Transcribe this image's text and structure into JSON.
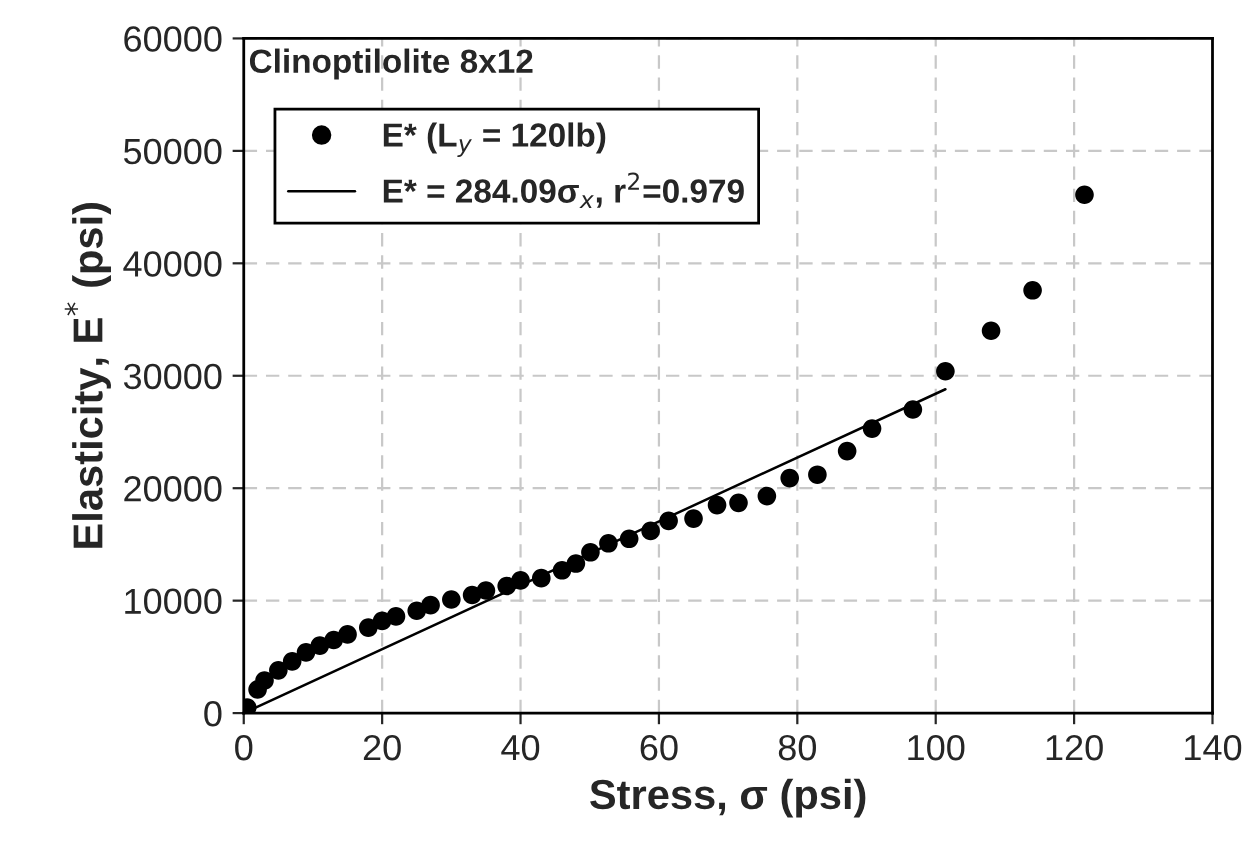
{
  "chart_data": {
    "type": "scatter",
    "title": "Clinoptilolite 8x12",
    "xlabel": "Stress, σ (psi)",
    "ylabel": "Elasticity, E$^{*}$ (psi)",
    "series": [
      {
        "name": "E* (L$_{y}$ = 120lb)",
        "color": "#000000",
        "marker": "circle",
        "x": [
          0.5,
          2,
          3,
          5,
          7,
          9,
          11,
          13,
          15,
          18,
          20,
          22,
          25,
          27,
          30,
          33,
          35,
          38,
          40,
          43,
          46,
          48,
          50.1,
          52.7,
          55.7,
          58.8,
          61.4,
          65.0,
          68.4,
          71.5,
          75.6,
          78.9,
          82.9,
          87.2,
          90.8,
          96.7,
          101.4,
          108,
          114,
          121.5
        ],
        "values": [
          500,
          2100,
          2900,
          3800,
          4600,
          5400,
          6000,
          6500,
          7000,
          7600,
          8200,
          8600,
          9100,
          9600,
          10100,
          10500,
          10900,
          11300,
          11800,
          12000,
          12700,
          13300,
          14300,
          15100,
          15500,
          16200,
          17100,
          17300,
          18500,
          18700,
          19300,
          20900,
          21200,
          23300,
          25300,
          27000,
          30400,
          34000,
          37600,
          46100
        ]
      },
      {
        "name": "E* = 284.09σ$_{x}$, r$^{2}$=0.979",
        "type": "line",
        "color": "#000000",
        "line_style": "solid",
        "x": [
          0,
          101.4
        ],
        "values": [
          0,
          28800
        ]
      }
    ],
    "xlim": [
      0,
      140
    ],
    "ylim": [
      0,
      60000
    ],
    "xticks": [
      0,
      20,
      40,
      60,
      80,
      100,
      120,
      140
    ],
    "yticks": [
      0,
      10000,
      20000,
      30000,
      40000,
      50000,
      60000
    ],
    "grid": true,
    "legend": "top left"
  }
}
